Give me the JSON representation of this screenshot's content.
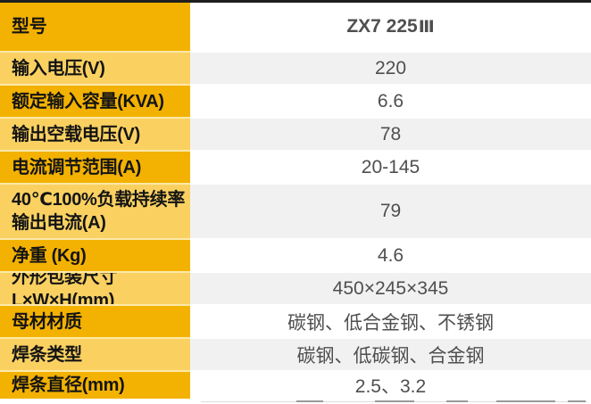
{
  "colors": {
    "gold-dark": "#F3B202",
    "gold-light": "#FAD161",
    "row-separator": "#FCE9A9",
    "stripe-gray": "#F1F1F2",
    "bg-white": "#FFFFFF",
    "edge-dark": "#1E1E1E",
    "label-text": "#141414",
    "value-text": "#4F4F4F",
    "header-text": "#1A1A1A"
  },
  "spec_table": {
    "rows": [
      {
        "label": "型号",
        "value": "ZX7 225",
        "value_suffix": "Ⅲ"
      },
      {
        "label": "输入电压(V)",
        "value": "220"
      },
      {
        "label": "额定输入容量(KVA)",
        "value": "6.6"
      },
      {
        "label": "输出空载电压(V)",
        "value": "78"
      },
      {
        "label": "电流调节范围(A)",
        "value": "20-145"
      },
      {
        "label": "40℃100%负载持续率\n输出电流(A)",
        "value": "79"
      },
      {
        "label": "净重 (Kg)",
        "value": "4.6"
      },
      {
        "label": "外形包装尺寸L×W×H(mm)",
        "value": "450×245×345"
      },
      {
        "label": "母材材质",
        "value": "碳钢、低合金钢、不锈钢"
      },
      {
        "label": "焊条类型",
        "value": "碳钢、低碳钢、合金钢"
      },
      {
        "label": "焊条直径(mm)",
        "value": "2.5、3.2"
      }
    ]
  }
}
